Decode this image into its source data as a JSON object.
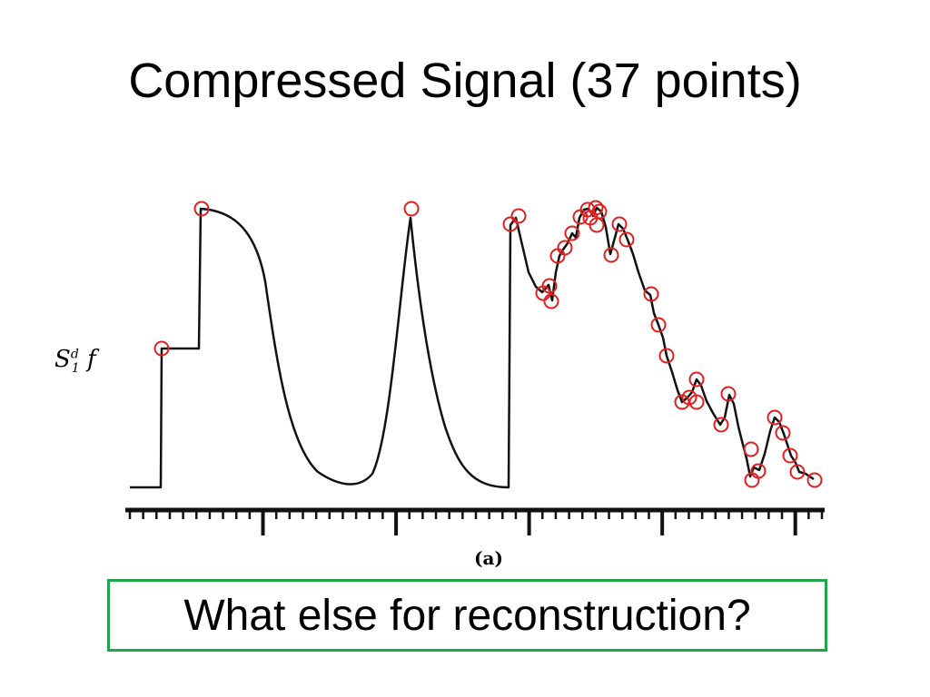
{
  "slide": {
    "title": "Compressed Signal (37 points)",
    "question": "What else for reconstruction?",
    "box_color": "#1fa64b"
  },
  "figure": {
    "signal_label": {
      "main": "S",
      "sup": "d",
      "sub": "1",
      "arg": " f"
    },
    "caption": "(a)",
    "marker_color": "#e02020"
  }
}
